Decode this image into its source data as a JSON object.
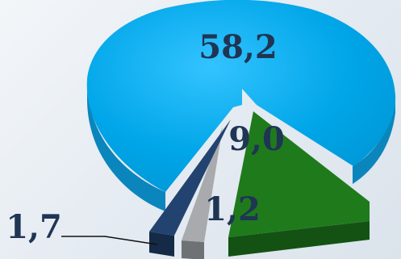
{
  "chart_data": {
    "type": "pie",
    "style": "3d-exploded",
    "title": "",
    "slices": [
      {
        "label": "58,2",
        "value": 58.2,
        "color": "#00a6e8",
        "side_color": "#0a86bd"
      },
      {
        "label": "9,0",
        "value": 9.0,
        "color": "#1f7a1c",
        "side_color": "#145214"
      },
      {
        "label": "1,2",
        "value": 1.2,
        "color": "#a8aaad",
        "side_color": "#6f7275"
      },
      {
        "label": "1,7",
        "value": 1.7,
        "color": "#22436f",
        "side_color": "#142a47"
      }
    ],
    "legend": "none",
    "label_color": "#1f3554",
    "leader_line_on": [
      "1,7"
    ]
  }
}
